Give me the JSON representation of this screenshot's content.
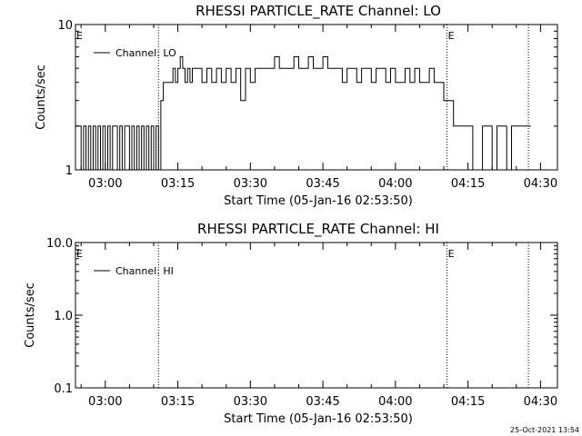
{
  "stamp": "25-Oct-2021 13:54",
  "chart_data": [
    {
      "type": "line",
      "title": "RHESSI PARTICLE_RATE Channel: LO",
      "xlabel": "Start Time (05-Jan-16 02:53:50)",
      "ylabel": "Counts/sec",
      "yscale": "log",
      "xlim": [
        "02:53:50",
        "04:33:30"
      ],
      "ylim": [
        1,
        10
      ],
      "x_ticks": [
        "03:00",
        "03:15",
        "03:30",
        "03:45",
        "04:00",
        "04:15",
        "04:30"
      ],
      "y_ticks": [
        "1",
        "10"
      ],
      "legend": "top-left",
      "grid": false,
      "markers": [
        {
          "time": "02:53:50",
          "label": "E"
        },
        {
          "time": "04:10:40",
          "label": "E"
        },
        {
          "time": "04:27:30",
          "label": ""
        },
        {
          "time": "03:11:00",
          "label": ""
        }
      ],
      "series": [
        {
          "name": "Channel: LO",
          "x": [
            "02:53:50",
            "02:54:30",
            "02:55:00",
            "02:55:30",
            "02:56:00",
            "02:56:30",
            "02:57:00",
            "02:57:30",
            "02:58:00",
            "02:58:30",
            "02:59:00",
            "02:59:30",
            "03:00:00",
            "03:00:30",
            "03:01:00",
            "03:01:30",
            "03:02:00",
            "03:02:30",
            "03:03:00",
            "03:03:30",
            "03:04:00",
            "03:04:30",
            "03:05:00",
            "03:05:30",
            "03:06:00",
            "03:06:30",
            "03:07:00",
            "03:07:30",
            "03:08:00",
            "03:08:30",
            "03:09:00",
            "03:09:30",
            "03:10:00",
            "03:10:30",
            "03:11:00",
            "03:11:30",
            "03:12:00",
            "03:13:00",
            "03:13:30",
            "03:14:00",
            "03:14:30",
            "03:15:00",
            "03:15:30",
            "03:16:00",
            "03:16:30",
            "03:17:00",
            "03:17:30",
            "03:18:00",
            "03:19:00",
            "03:20:00",
            "03:21:00",
            "03:22:00",
            "03:23:00",
            "03:24:00",
            "03:25:00",
            "03:26:00",
            "03:27:00",
            "03:28:00",
            "03:29:00",
            "03:30:00",
            "03:31:00",
            "03:32:00",
            "03:33:00",
            "03:34:00",
            "03:35:00",
            "03:36:00",
            "03:37:00",
            "03:38:00",
            "03:39:00",
            "03:40:00",
            "03:41:00",
            "03:42:00",
            "03:43:00",
            "03:44:00",
            "03:45:00",
            "03:46:00",
            "03:47:00",
            "03:48:00",
            "03:49:00",
            "03:50:00",
            "03:51:00",
            "03:52:00",
            "03:53:00",
            "03:54:00",
            "03:55:00",
            "03:56:00",
            "03:57:00",
            "03:58:00",
            "03:59:00",
            "04:00:00",
            "04:01:00",
            "04:02:00",
            "04:03:00",
            "04:04:00",
            "04:05:00",
            "04:06:00",
            "04:07:00",
            "04:08:00",
            "04:09:00",
            "04:10:00",
            "04:11:00",
            "04:12:00",
            "04:13:00",
            "04:14:00",
            "04:15:00",
            "04:16:00",
            "04:17:00",
            "04:18:00",
            "04:19:00",
            "04:20:00",
            "04:21:00",
            "04:22:00",
            "04:23:00",
            "04:24:00",
            "04:25:00",
            "04:26:00",
            "04:27:00",
            "04:28:00"
          ],
          "values": [
            2,
            2,
            1,
            2,
            1,
            2,
            1,
            2,
            1,
            2,
            1,
            2,
            1,
            2,
            1,
            2,
            2,
            1,
            2,
            1,
            2,
            2,
            1,
            2,
            1,
            2,
            1,
            2,
            1,
            2,
            1,
            2,
            1,
            2,
            1,
            3,
            4,
            4,
            4,
            5,
            4,
            5,
            6,
            5,
            4,
            5,
            4,
            5,
            5,
            4,
            5,
            4,
            5,
            4,
            5,
            4,
            5,
            3,
            5,
            4,
            5,
            5,
            5,
            5,
            6,
            5,
            5,
            5,
            6,
            5,
            5,
            6,
            5,
            5,
            6,
            5,
            5,
            5,
            4,
            5,
            5,
            4,
            5,
            5,
            4,
            5,
            5,
            4,
            5,
            4,
            4,
            5,
            4,
            5,
            4,
            4,
            5,
            4,
            4,
            3,
            3,
            2,
            2,
            2,
            2,
            1,
            1,
            2,
            2,
            1,
            2,
            2,
            1,
            2,
            2,
            2,
            2,
            2
          ]
        }
      ]
    },
    {
      "type": "line",
      "title": "RHESSI PARTICLE_RATE Channel: HI",
      "xlabel": "Start Time (05-Jan-16 02:53:50)",
      "ylabel": "Counts/sec",
      "yscale": "log",
      "xlim": [
        "02:53:50",
        "04:33:30"
      ],
      "ylim": [
        0.1,
        10
      ],
      "x_ticks": [
        "03:00",
        "03:15",
        "03:30",
        "03:45",
        "04:00",
        "04:15",
        "04:30"
      ],
      "y_ticks": [
        "0.1",
        "1.0",
        "10.0"
      ],
      "legend": "top-left",
      "grid": false,
      "markers": [
        {
          "time": "02:53:50",
          "label": "E"
        },
        {
          "time": "04:10:40",
          "label": "E"
        },
        {
          "time": "04:27:30",
          "label": ""
        },
        {
          "time": "03:11:00",
          "label": ""
        }
      ],
      "series": [
        {
          "name": "Channel: HI",
          "x": [],
          "values": []
        }
      ]
    }
  ]
}
